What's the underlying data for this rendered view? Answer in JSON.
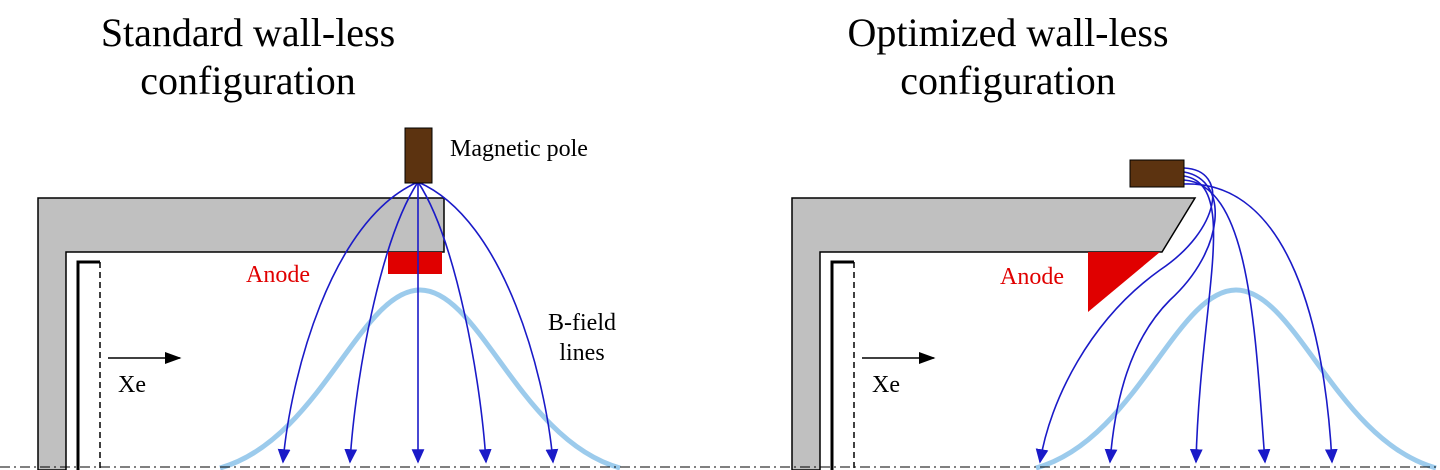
{
  "left": {
    "title_lines": [
      "Standard wall-less",
      "configuration"
    ],
    "pole_label": "Magnetic pole",
    "anode_label": "Anode",
    "field_label_lines": [
      "B-field",
      "lines"
    ],
    "gas_label": "Xe"
  },
  "right": {
    "title_lines": [
      "Optimized wall-less",
      "configuration"
    ],
    "anode_label": "Anode",
    "gas_label": "Xe"
  }
}
